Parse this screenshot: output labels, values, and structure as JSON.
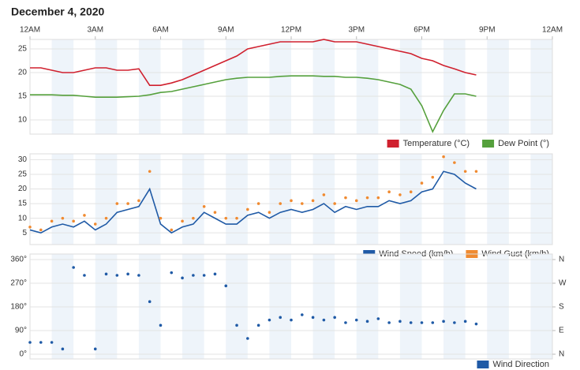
{
  "chart_data": [
    {
      "type": "line",
      "title": "December 4, 2020",
      "x": [
        0,
        0.5,
        1,
        1.5,
        2,
        2.5,
        3,
        3.5,
        4,
        4.5,
        5,
        5.5,
        6,
        6.5,
        7,
        7.5,
        8,
        8.5,
        9,
        9.5,
        10,
        10.5,
        11,
        11.5,
        12,
        12.5,
        13,
        13.5,
        14,
        14.5,
        15,
        15.5,
        16,
        16.5,
        17,
        17.5,
        18,
        18.5,
        19,
        19.5,
        20,
        20.5
      ],
      "xlim": [
        0,
        24
      ],
      "xticks": [
        {
          "value": 0,
          "label": "12AM"
        },
        {
          "value": 3,
          "label": "3AM"
        },
        {
          "value": 6,
          "label": "6AM"
        },
        {
          "value": 9,
          "label": "9AM"
        },
        {
          "value": 12,
          "label": "12PM"
        },
        {
          "value": 15,
          "label": "3PM"
        },
        {
          "value": 18,
          "label": "6PM"
        },
        {
          "value": 21,
          "label": "9PM"
        },
        {
          "value": 24,
          "label": "12AM"
        }
      ],
      "ylim": [
        7,
        27
      ],
      "yticks": [
        10,
        15,
        20,
        25
      ],
      "grid": true,
      "series": [
        {
          "name": "Temperature (°C)",
          "color": "#d0202e",
          "mode": "line",
          "values": [
            21,
            21,
            20.5,
            20,
            20,
            20.5,
            21,
            21,
            20.5,
            20.5,
            20.8,
            17.3,
            17.3,
            17.8,
            18.5,
            19.5,
            20.5,
            21.5,
            22.5,
            23.5,
            25,
            25.5,
            26,
            26.5,
            26.5,
            26.5,
            26.5,
            27,
            26.5,
            26.5,
            26.5,
            26,
            25.5,
            25,
            24.5,
            24,
            23,
            22.5,
            21.5,
            20.8,
            20,
            19.5
          ]
        },
        {
          "name": "Dew Point (°)",
          "color": "#55a03c",
          "mode": "line",
          "values": [
            15.3,
            15.3,
            15.3,
            15.2,
            15.2,
            15,
            14.8,
            14.8,
            14.8,
            14.9,
            15,
            15.3,
            15.8,
            16,
            16.5,
            17,
            17.5,
            18,
            18.5,
            18.8,
            19,
            19,
            19,
            19.2,
            19.3,
            19.3,
            19.3,
            19.2,
            19.2,
            19,
            19,
            18.8,
            18.5,
            18,
            17.5,
            16.5,
            13,
            7.5,
            12,
            15.5,
            15.5,
            15
          ]
        }
      ]
    },
    {
      "type": "line",
      "x": [
        0,
        0.5,
        1,
        1.5,
        2,
        2.5,
        3,
        3.5,
        4,
        4.5,
        5,
        5.5,
        6,
        6.5,
        7,
        7.5,
        8,
        8.5,
        9,
        9.5,
        10,
        10.5,
        11,
        11.5,
        12,
        12.5,
        13,
        13.5,
        14,
        14.5,
        15,
        15.5,
        16,
        16.5,
        17,
        17.5,
        18,
        18.5,
        19,
        19.5,
        20,
        20.5
      ],
      "xlim": [
        0,
        24
      ],
      "ylim": [
        1,
        32
      ],
      "yticks": [
        5,
        10,
        15,
        20,
        25,
        30
      ],
      "grid": true,
      "series": [
        {
          "name": "Wind Speed (km/h)",
          "color": "#1f5aa6",
          "mode": "line",
          "values": [
            6,
            5,
            7,
            8,
            7,
            9,
            6,
            8,
            12,
            13,
            14,
            20,
            8,
            5,
            7,
            8,
            12,
            10,
            8,
            8,
            11,
            12,
            10,
            12,
            13,
            12,
            13,
            15,
            12,
            14,
            13,
            14,
            14,
            16,
            15,
            16,
            19,
            20,
            26,
            25,
            22,
            20
          ]
        },
        {
          "name": "Wind Gust (km/h)",
          "color": "#f08a30",
          "mode": "markers",
          "values": [
            7,
            6,
            9,
            10,
            9,
            11,
            8,
            10,
            15,
            15,
            16,
            26,
            10,
            6,
            9,
            10,
            14,
            12,
            10,
            10,
            13,
            15,
            12,
            15,
            16,
            15,
            16,
            18,
            15,
            17,
            16,
            17,
            17,
            19,
            18,
            19,
            22,
            24,
            31,
            29,
            26,
            26
          ]
        }
      ]
    },
    {
      "type": "scatter",
      "x": [
        0,
        0.5,
        1,
        1.5,
        2,
        2.5,
        3,
        3.5,
        4,
        4.5,
        5,
        5.5,
        6,
        6.5,
        7,
        7.5,
        8,
        8.5,
        9,
        9.5,
        10,
        10.5,
        11,
        11.5,
        12,
        12.5,
        13,
        13.5,
        14,
        14.5,
        15,
        15.5,
        16,
        16.5,
        17,
        17.5,
        18,
        18.5,
        19,
        19.5,
        20,
        20.5
      ],
      "xlim": [
        0,
        24
      ],
      "ylim": [
        -18,
        381
      ],
      "yticks": [
        {
          "value": 0,
          "label": "0°"
        },
        {
          "value": 90,
          "label": "90°"
        },
        {
          "value": 180,
          "label": "180°"
        },
        {
          "value": 270,
          "label": "270°"
        },
        {
          "value": 360,
          "label": "360°"
        }
      ],
      "y2lim": [
        -18,
        381
      ],
      "y2ticks": [
        {
          "value": 0,
          "label": "N"
        },
        {
          "value": 90,
          "label": "E"
        },
        {
          "value": 180,
          "label": "S"
        },
        {
          "value": 270,
          "label": "W"
        },
        {
          "value": 360,
          "label": "N"
        }
      ],
      "grid": true,
      "series": [
        {
          "name": "Wind Direction",
          "color": "#1f5aa6",
          "mode": "markers",
          "values": [
            45,
            45,
            45,
            20,
            330,
            300,
            20,
            305,
            300,
            305,
            300,
            200,
            110,
            310,
            290,
            300,
            300,
            305,
            260,
            110,
            60,
            110,
            130,
            140,
            130,
            150,
            140,
            130,
            140,
            120,
            130,
            125,
            135,
            120,
            125,
            120,
            120,
            120,
            125,
            120,
            125,
            115
          ]
        }
      ]
    }
  ]
}
